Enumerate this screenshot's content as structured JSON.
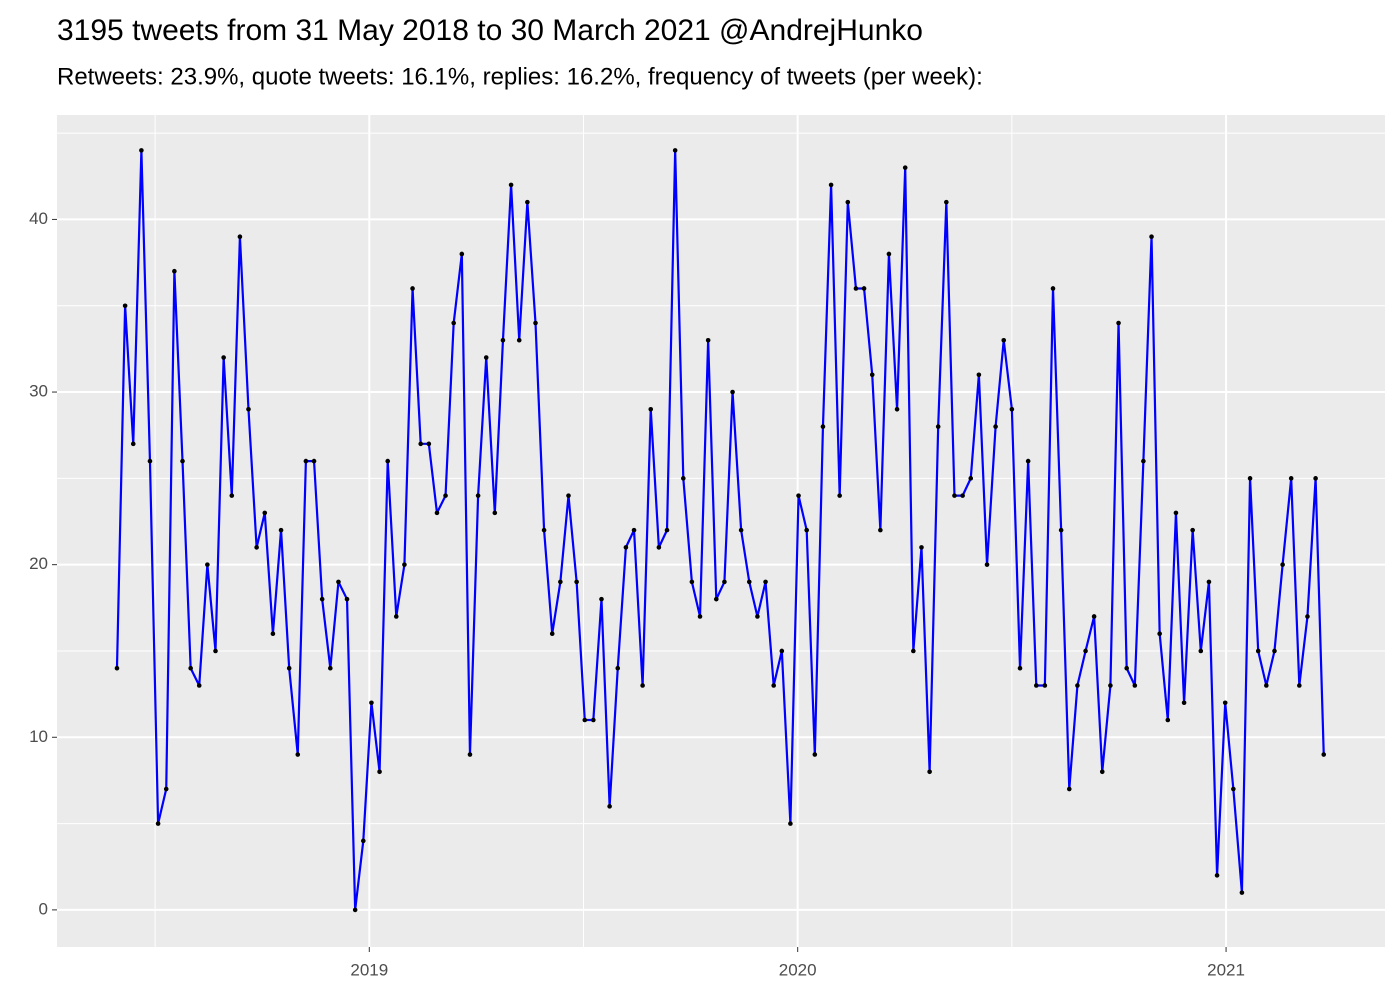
{
  "chart_data": {
    "type": "line",
    "title": "3195 tweets from 31 May 2018 to 30 March 2021 @AndrejHunko",
    "subtitle": "Retweets: 23.9%, quote tweets: 16.1%, replies: 16.2%, frequency of tweets (per week):",
    "color": "#0000ff",
    "point_color": "#000000",
    "background": "#ebebeb",
    "grid": true,
    "xlim": [
      2018.271,
      2021.371
    ],
    "xticks": [
      2019,
      2020,
      2021
    ],
    "x_minor_ticks": [
      2018.5,
      2019.5,
      2020.5
    ],
    "ylim": [
      -2.15,
      46.05
    ],
    "yticks": [
      0,
      10,
      20,
      30,
      40
    ],
    "y_minor_ticks": [
      5,
      15,
      25,
      35,
      45
    ],
    "x": [
      2018.411,
      2018.43,
      2018.449,
      2018.468,
      2018.488,
      2018.507,
      2018.526,
      2018.545,
      2018.564,
      2018.583,
      2018.603,
      2018.622,
      2018.641,
      2018.66,
      2018.679,
      2018.698,
      2018.718,
      2018.737,
      2018.756,
      2018.775,
      2018.794,
      2018.813,
      2018.833,
      2018.852,
      2018.871,
      2018.89,
      2018.909,
      2018.928,
      2018.948,
      2018.967,
      2018.986,
      2019.005,
      2019.024,
      2019.043,
      2019.063,
      2019.082,
      2019.101,
      2019.12,
      2019.139,
      2019.158,
      2019.178,
      2019.197,
      2019.216,
      2019.235,
      2019.254,
      2019.273,
      2019.293,
      2019.312,
      2019.331,
      2019.35,
      2019.369,
      2019.388,
      2019.408,
      2019.427,
      2019.446,
      2019.465,
      2019.484,
      2019.503,
      2019.523,
      2019.542,
      2019.561,
      2019.58,
      2019.599,
      2019.618,
      2019.638,
      2019.657,
      2019.676,
      2019.695,
      2019.714,
      2019.733,
      2019.753,
      2019.772,
      2019.791,
      2019.81,
      2019.829,
      2019.848,
      2019.868,
      2019.887,
      2019.906,
      2019.925,
      2019.944,
      2019.963,
      2019.983,
      2020.002,
      2020.021,
      2020.04,
      2020.059,
      2020.078,
      2020.098,
      2020.117,
      2020.136,
      2020.155,
      2020.174,
      2020.193,
      2020.213,
      2020.232,
      2020.251,
      2020.27,
      2020.289,
      2020.308,
      2020.328,
      2020.347,
      2020.366,
      2020.385,
      2020.404,
      2020.423,
      2020.442,
      2020.462,
      2020.481,
      2020.5,
      2020.519,
      2020.538,
      2020.557,
      2020.577,
      2020.596,
      2020.615,
      2020.634,
      2020.653,
      2020.672,
      2020.692,
      2020.711,
      2020.73,
      2020.749,
      2020.768,
      2020.787,
      2020.807,
      2020.826,
      2020.845,
      2020.864,
      2020.883,
      2020.902,
      2020.922,
      2020.941,
      2020.96,
      2020.979,
      2020.998,
      2021.017,
      2021.037,
      2021.056,
      2021.075,
      2021.094,
      2021.113,
      2021.132,
      2021.152,
      2021.171,
      2021.19,
      2021.209,
      2021.228
    ],
    "values": [
      14,
      35,
      27,
      44,
      26,
      5,
      7,
      37,
      26,
      14,
      13,
      20,
      15,
      32,
      24,
      39,
      29,
      21,
      23,
      16,
      22,
      14,
      9,
      26,
      26,
      18,
      14,
      19,
      18,
      0,
      4,
      12,
      8,
      26,
      17,
      20,
      36,
      27,
      27,
      23,
      24,
      34,
      38,
      9,
      24,
      32,
      23,
      33,
      42,
      33,
      41,
      34,
      22,
      16,
      19,
      24,
      19,
      11,
      11,
      18,
      6,
      14,
      21,
      22,
      13,
      29,
      21,
      22,
      44,
      25,
      19,
      17,
      33,
      18,
      19,
      30,
      22,
      19,
      17,
      19,
      13,
      15,
      5,
      24,
      22,
      9,
      28,
      42,
      24,
      41,
      36,
      36,
      31,
      22,
      38,
      29,
      43,
      15,
      21,
      8,
      28,
      41,
      24,
      24,
      25,
      31,
      20,
      28,
      33,
      29,
      14,
      26,
      13,
      13,
      36,
      22,
      7,
      13,
      15,
      17,
      8,
      13,
      34,
      14,
      13,
      26,
      39,
      16,
      11,
      23,
      12,
      22,
      15,
      19,
      2,
      12,
      7,
      1,
      25,
      15,
      13,
      15,
      20,
      25,
      13,
      17,
      25,
      9
    ]
  }
}
